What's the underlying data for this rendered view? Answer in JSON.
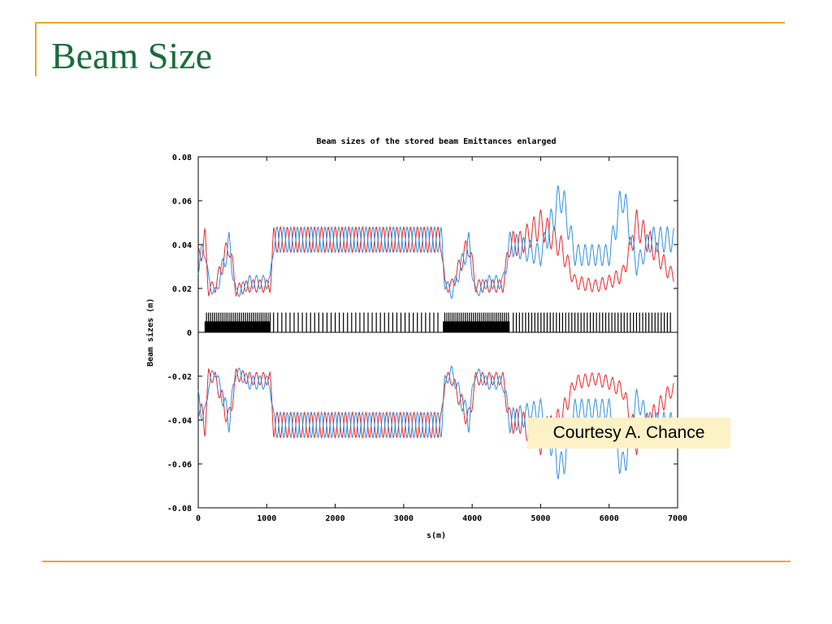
{
  "slide": {
    "title": "Beam Size",
    "note": "Courtesy A. Chance",
    "accent_color": "#e3a92d",
    "title_color": "#1a6b3c"
  },
  "chart_data": {
    "type": "line",
    "title": "Beam sizes of the stored beam Emittances enlarged",
    "xlabel": "s(m)",
    "ylabel": "Beam sizes (m)",
    "xlim": [
      0,
      7000
    ],
    "ylim": [
      -0.08,
      0.08
    ],
    "x_ticks": [
      "0",
      "1000",
      "2000",
      "3000",
      "4000",
      "5000",
      "6000",
      "7000"
    ],
    "y_ticks": [
      "0.08",
      "0.06",
      "0.04",
      "0.02",
      "0",
      "-0.02",
      "-0.04",
      "-0.06",
      "-0.08"
    ],
    "y_tick_values": [
      0.08,
      0.06,
      0.04,
      0.02,
      0,
      -0.02,
      -0.04,
      -0.06,
      -0.08
    ],
    "grid": false,
    "envelope_mirrored": true,
    "series": [
      {
        "color": "#e8262a",
        "x": [
          0,
          100,
          150,
          250,
          450,
          550,
          750,
          1050,
          1100,
          2000,
          3000,
          3550,
          3600,
          3700,
          3950,
          4050,
          4200,
          4450,
          4550,
          4700,
          5000,
          5300,
          5500,
          5800,
          6000,
          6200,
          6400,
          6600,
          6900
        ],
        "y": [
          0.038,
          0.048,
          0.022,
          0.024,
          0.046,
          0.022,
          0.024,
          0.024,
          0.048,
          0.048,
          0.048,
          0.048,
          0.024,
          0.024,
          0.046,
          0.024,
          0.024,
          0.024,
          0.046,
          0.046,
          0.056,
          0.044,
          0.026,
          0.024,
          0.026,
          0.03,
          0.056,
          0.046,
          0.03
        ]
      },
      {
        "color": "#2e8fe0",
        "x": [
          0,
          100,
          150,
          250,
          450,
          550,
          750,
          1050,
          1100,
          2000,
          3000,
          3550,
          3600,
          3700,
          3950,
          4050,
          4200,
          4450,
          4550,
          4700,
          5000,
          5300,
          5500,
          5800,
          6000,
          6200,
          6400,
          6600,
          6900
        ],
        "y": [
          0.035,
          0.045,
          0.026,
          0.02,
          0.046,
          0.02,
          0.026,
          0.026,
          0.048,
          0.048,
          0.048,
          0.048,
          0.026,
          0.02,
          0.046,
          0.02,
          0.026,
          0.026,
          0.046,
          0.044,
          0.04,
          0.072,
          0.04,
          0.04,
          0.04,
          0.072,
          0.034,
          0.048,
          0.048
        ]
      }
    ],
    "magnet_marker_color": "#000000"
  }
}
